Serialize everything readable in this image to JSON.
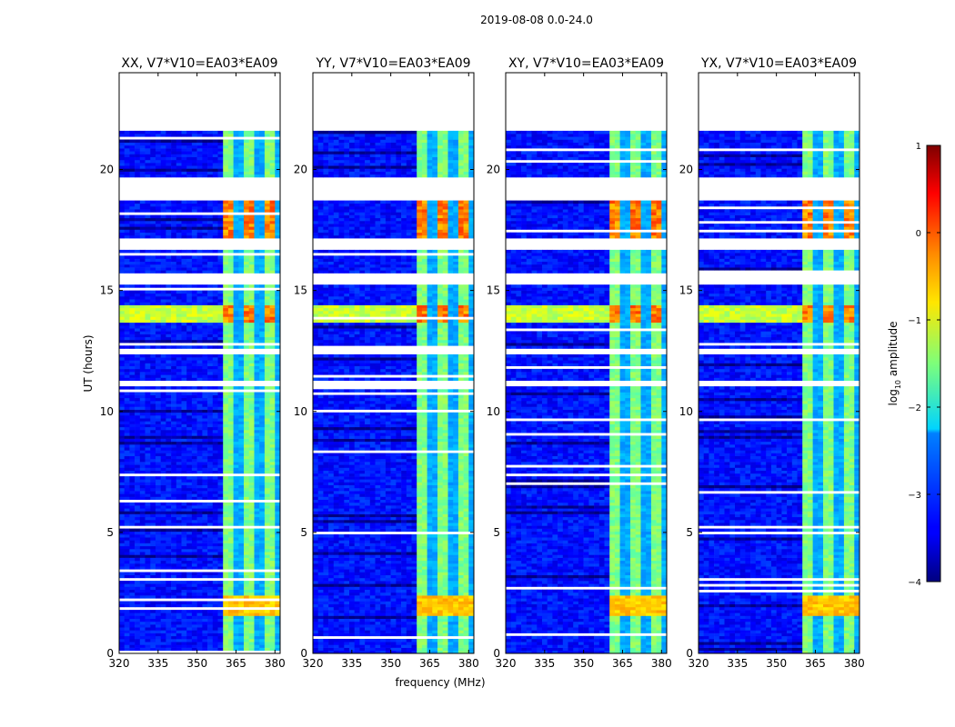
{
  "figure": {
    "suptitle": "2019-08-08 0.0-24.0"
  },
  "chart_data": {
    "type": "heatmap",
    "xlabel": "frequency (MHz)",
    "ylabel": "UT (hours)",
    "xlim": [
      320,
      382
    ],
    "ylim": [
      0,
      24
    ],
    "xticks": [
      320,
      335,
      350,
      365,
      380
    ],
    "yticks": [
      0,
      5,
      10,
      15,
      20
    ],
    "panels": [
      {
        "title": "XX, V7*V10=EA03*EA09",
        "polarization": "XX"
      },
      {
        "title": "YY, V7*V10=EA03*EA09",
        "polarization": "YY"
      },
      {
        "title": "XY, V7*V10=EA03*EA09",
        "polarization": "XY"
      },
      {
        "title": "YX, V7*V10=EA03*EA09",
        "polarization": "YX"
      }
    ],
    "colorbar": {
      "label_main": "log",
      "label_sub": "10",
      "label_tail": " amplitude",
      "range": [
        -4,
        1
      ],
      "ticks": [
        1,
        0,
        -1,
        -2,
        -3,
        -4
      ],
      "colormap": "jet"
    },
    "data_extent_hours": [
      0,
      21.5
    ],
    "gaps_hours": [
      [
        18.6,
        19.6
      ],
      [
        16.6,
        17.1
      ],
      [
        15.2,
        15.6
      ],
      [
        12.3,
        12.5
      ],
      [
        11.0,
        11.2
      ]
    ],
    "rfi_band_mhz": [
      360,
      382
    ],
    "rfi_band_level_log10": -1.5,
    "strong_rfi_hours": [
      [
        13.6,
        14.3
      ],
      [
        17.1,
        18.6
      ]
    ],
    "background_level_log10": -3.3
  }
}
